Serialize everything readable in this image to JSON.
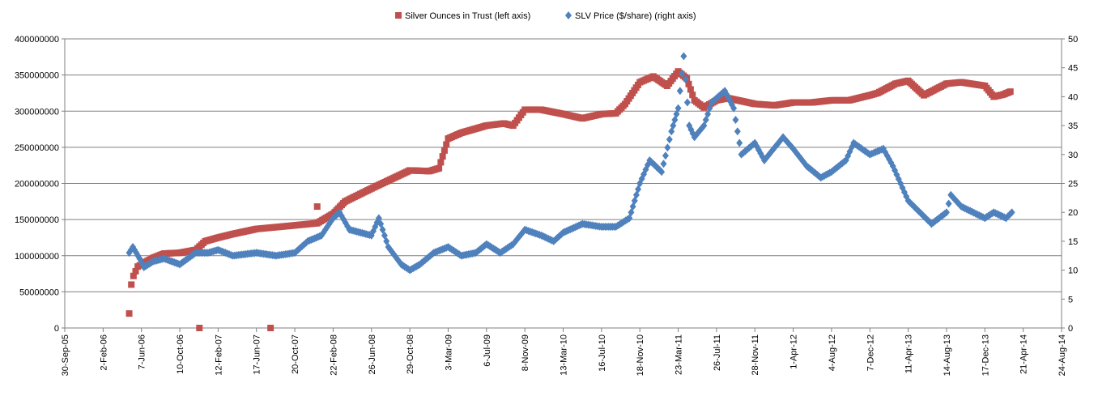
{
  "chart_data": {
    "type": "scatter",
    "title": "",
    "legend": {
      "placement": "top-center",
      "entries": [
        "Silver Ounces in Trust (left axis)",
        "SLV Price ($/share) (right axis)"
      ]
    },
    "x_axis": {
      "type": "date",
      "range": [
        "2005-09-30",
        "2014-08-24"
      ],
      "tick_labels": [
        "30-Sep-05",
        "2-Feb-06",
        "7-Jun-06",
        "10-Oct-06",
        "12-Feb-07",
        "17-Jun-07",
        "20-Oct-07",
        "22-Feb-08",
        "26-Jun-08",
        "29-Oct-08",
        "3-Mar-09",
        "6-Jul-09",
        "8-Nov-09",
        "13-Mar-10",
        "16-Jul-10",
        "18-Nov-10",
        "23-Mar-11",
        "26-Jul-11",
        "28-Nov-11",
        "1-Apr-12",
        "4-Aug-12",
        "7-Dec-12",
        "11-Apr-13",
        "14-Aug-13",
        "17-Dec-13",
        "21-Apr-14",
        "24-Aug-14"
      ]
    },
    "y_left": {
      "ylim": [
        0,
        400000000
      ],
      "tick_labels": [
        "0",
        "50000000",
        "100000000",
        "150000000",
        "200000000",
        "250000000",
        "300000000",
        "350000000",
        "400000000"
      ]
    },
    "y_right": {
      "ylim": [
        0,
        50
      ],
      "tick_labels": [
        "0",
        "5",
        "10",
        "15",
        "20",
        "25",
        "30",
        "35",
        "40",
        "45",
        "50"
      ]
    },
    "grid": "horizontal",
    "series": [
      {
        "name": "Silver Ounces in Trust (left axis)",
        "axis": "left",
        "color": "#c0504d",
        "marker": "square",
        "x": [
          "2006-04-28",
          "2006-05-05",
          "2006-05-12",
          "2006-05-26",
          "2006-06-15",
          "2006-07-15",
          "2006-08-20",
          "2006-10-10",
          "2006-12-01",
          "2007-01-01",
          "2007-02-12",
          "2007-04-01",
          "2007-06-17",
          "2007-09-01",
          "2007-10-20",
          "2008-01-01",
          "2008-02-22",
          "2008-04-01",
          "2008-06-26",
          "2008-08-15",
          "2008-10-29",
          "2009-01-01",
          "2009-02-01",
          "2009-03-03",
          "2009-04-15",
          "2009-07-06",
          "2009-09-01",
          "2009-10-01",
          "2009-11-08",
          "2010-01-01",
          "2010-03-13",
          "2010-05-15",
          "2010-07-16",
          "2010-09-01",
          "2010-10-01",
          "2010-11-18",
          "2011-01-01",
          "2011-02-15",
          "2011-03-23",
          "2011-04-20",
          "2011-05-15",
          "2011-06-15",
          "2011-07-26",
          "2011-09-01",
          "2011-11-28",
          "2012-02-01",
          "2012-04-01",
          "2012-06-01",
          "2012-08-04",
          "2012-10-01",
          "2012-12-07",
          "2013-01-01",
          "2013-03-01",
          "2013-04-11",
          "2013-06-01",
          "2013-08-14",
          "2013-10-01",
          "2013-12-17",
          "2014-01-15",
          "2014-02-15",
          "2014-03-10"
        ],
        "values": [
          20000000,
          60000000,
          72000000,
          85000000,
          90000000,
          97000000,
          103000000,
          104000000,
          108000000,
          120000000,
          125000000,
          130000000,
          137000000,
          140000000,
          142000000,
          145000000,
          158000000,
          175000000,
          193000000,
          203000000,
          218000000,
          217000000,
          221000000,
          262000000,
          270000000,
          280000000,
          283000000,
          280000000,
          302000000,
          302000000,
          296000000,
          290000000,
          296000000,
          297000000,
          310000000,
          340000000,
          348000000,
          335000000,
          355000000,
          345000000,
          315000000,
          305000000,
          315000000,
          318000000,
          310000000,
          308000000,
          312000000,
          312000000,
          315000000,
          315000000,
          322000000,
          325000000,
          338000000,
          342000000,
          322000000,
          338000000,
          340000000,
          335000000,
          320000000,
          323000000,
          327000000
        ],
        "outliers": [
          {
            "x": "2006-12-13",
            "value": 0
          },
          {
            "x": "2007-08-02",
            "value": 0
          },
          {
            "x": "2008-01-01",
            "value": 168000000
          }
        ]
      },
      {
        "name": "SLV Price ($/share) (right axis)",
        "axis": "right",
        "color": "#4f81bd",
        "marker": "diamond",
        "x": [
          "2006-04-28",
          "2006-05-10",
          "2006-06-01",
          "2006-06-15",
          "2006-07-15",
          "2006-08-20",
          "2006-10-10",
          "2006-12-01",
          "2007-01-10",
          "2007-02-12",
          "2007-04-01",
          "2007-06-17",
          "2007-08-20",
          "2007-10-20",
          "2007-12-01",
          "2008-01-15",
          "2008-02-22",
          "2008-03-14",
          "2008-04-15",
          "2008-06-26",
          "2008-07-20",
          "2008-08-20",
          "2008-10-01",
          "2008-10-29",
          "2008-12-01",
          "2009-01-15",
          "2009-03-03",
          "2009-04-15",
          "2009-06-01",
          "2009-07-06",
          "2009-08-20",
          "2009-10-01",
          "2009-11-08",
          "2010-01-01",
          "2010-02-10",
          "2010-03-13",
          "2010-05-15",
          "2010-07-16",
          "2010-09-01",
          "2010-10-15",
          "2010-11-18",
          "2010-12-20",
          "2011-01-28",
          "2011-03-01",
          "2011-03-23",
          "2011-04-10",
          "2011-04-28",
          "2011-05-15",
          "2011-06-15",
          "2011-07-10",
          "2011-08-22",
          "2011-09-20",
          "2011-10-15",
          "2011-11-28",
          "2011-12-29",
          "2012-02-28",
          "2012-04-01",
          "2012-05-15",
          "2012-06-30",
          "2012-08-04",
          "2012-09-20",
          "2012-10-15",
          "2012-12-07",
          "2013-01-20",
          "2013-02-20",
          "2013-04-11",
          "2013-06-26",
          "2013-08-14",
          "2013-08-28",
          "2013-10-01",
          "2013-12-17",
          "2014-01-15",
          "2014-02-24",
          "2014-03-15"
        ],
        "values": [
          13,
          14,
          12,
          10.5,
          11.5,
          12,
          11,
          13,
          13,
          13.5,
          12.5,
          13,
          12.5,
          13,
          15,
          16,
          19,
          20,
          17,
          16,
          19,
          14,
          11,
          10,
          11,
          13,
          14,
          12.5,
          13,
          14.5,
          13,
          14.5,
          17,
          16,
          15,
          16.5,
          18,
          17.5,
          17.5,
          19,
          25,
          29,
          27,
          34,
          38,
          47,
          35,
          33,
          35,
          39,
          41,
          38,
          30,
          32,
          29,
          33,
          31,
          28,
          26,
          27,
          29,
          32,
          30,
          31,
          28,
          22,
          18,
          20,
          23,
          21,
          19,
          20,
          19,
          20
        ]
      }
    ]
  }
}
